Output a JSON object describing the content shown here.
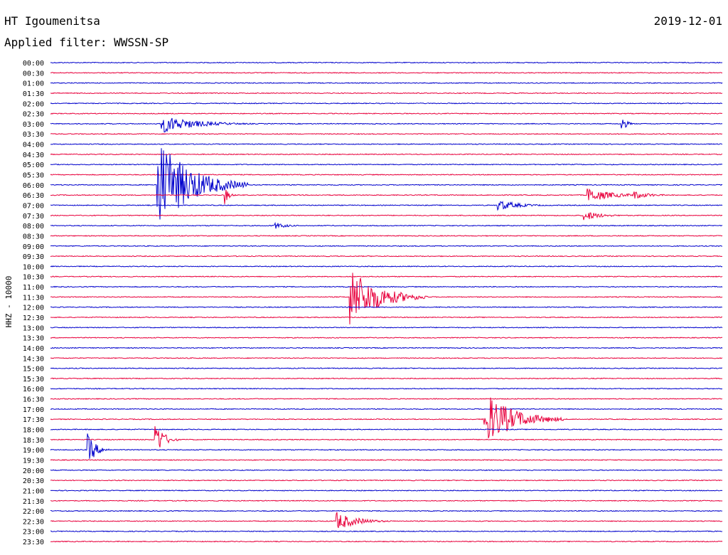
{
  "header": {
    "station": "HT Igoumenitsa",
    "filter": "Applied filter: WWSSN-SP",
    "date": "2019-12-01"
  },
  "chart_data": {
    "type": "line",
    "ylabel": "HHZ - 10000",
    "colors": {
      "blue": "#0000cc",
      "red": "#e8003c"
    },
    "rows": [
      "00:00",
      "00:30",
      "01:00",
      "01:30",
      "02:00",
      "02:30",
      "03:00",
      "03:30",
      "04:00",
      "04:30",
      "05:00",
      "05:30",
      "06:00",
      "06:30",
      "07:00",
      "07:30",
      "08:00",
      "08:30",
      "09:00",
      "09:30",
      "10:00",
      "10:30",
      "11:00",
      "11:30",
      "12:00",
      "12:30",
      "13:00",
      "13:30",
      "14:00",
      "14:30",
      "15:00",
      "15:30",
      "16:00",
      "16:30",
      "17:00",
      "17:30",
      "18:00",
      "18:30",
      "19:00",
      "19:30",
      "20:00",
      "20:30",
      "21:00",
      "21:30",
      "22:00",
      "22:30",
      "23:00",
      "23:30"
    ],
    "row_colors": [
      "blue",
      "red",
      "blue",
      "red",
      "blue",
      "red",
      "blue",
      "red",
      "blue",
      "red",
      "blue",
      "red",
      "blue",
      "red",
      "blue",
      "red",
      "blue",
      "red",
      "blue",
      "red",
      "blue",
      "red",
      "blue",
      "red",
      "blue",
      "red",
      "blue",
      "red",
      "blue",
      "red",
      "blue",
      "red",
      "blue",
      "red",
      "blue",
      "red",
      "blue",
      "red",
      "blue",
      "red",
      "blue",
      "red",
      "blue",
      "red",
      "blue",
      "red",
      "blue",
      "red"
    ],
    "events": [
      {
        "row": 6,
        "minute": 5.0,
        "amp": 1.0,
        "dur": 4
      },
      {
        "row": 6,
        "minute": 25.5,
        "amp": 0.9,
        "dur": 0.6
      },
      {
        "row": 12,
        "minute": 4.8,
        "amp": 5.0,
        "dur": 4
      },
      {
        "row": 13,
        "minute": 7.8,
        "amp": 0.9,
        "dur": 0.5
      },
      {
        "row": 13,
        "minute": 24.0,
        "amp": 0.8,
        "dur": 3
      },
      {
        "row": 13,
        "minute": 26.0,
        "amp": 0.5,
        "dur": 2
      },
      {
        "row": 14,
        "minute": 20.0,
        "amp": 0.6,
        "dur": 2.5
      },
      {
        "row": 15,
        "minute": 23.8,
        "amp": 0.6,
        "dur": 2
      },
      {
        "row": 16,
        "minute": 10.0,
        "amp": 0.4,
        "dur": 1.5
      },
      {
        "row": 23,
        "minute": 13.4,
        "amp": 3.2,
        "dur": 3.5
      },
      {
        "row": 35,
        "minute": 19.4,
        "amp": 3.0,
        "dur": 3.5
      },
      {
        "row": 37,
        "minute": 4.7,
        "amp": 2.0,
        "dur": 1.0
      },
      {
        "row": 38,
        "minute": 1.7,
        "amp": 1.6,
        "dur": 1.0
      },
      {
        "row": 45,
        "minute": 12.8,
        "amp": 1.0,
        "dur": 2.5
      }
    ]
  }
}
